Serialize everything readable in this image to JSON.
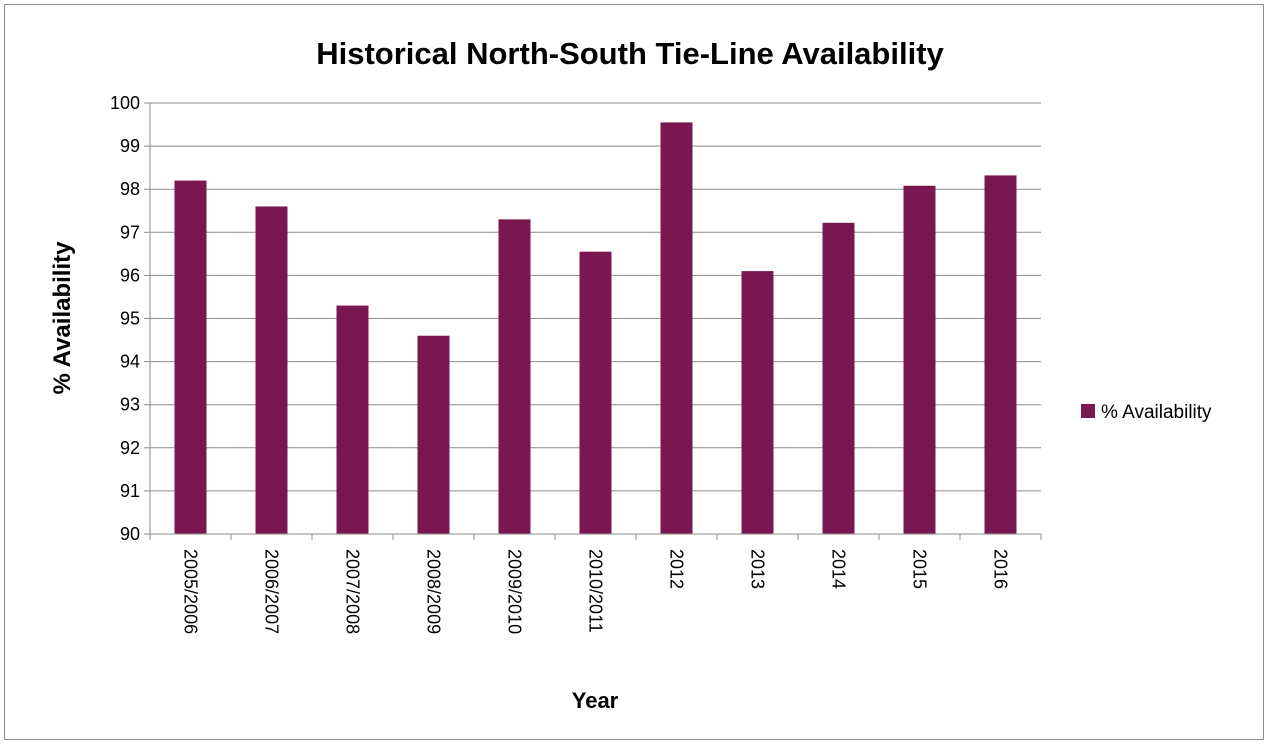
{
  "chart_data": {
    "type": "bar",
    "title": "Historical North-South Tie-Line Availability",
    "xlabel": "Year",
    "ylabel": "% Availability",
    "categories": [
      "2005/2006",
      "2006/2007",
      "2007/2008",
      "2008/2009",
      "2009/2010",
      "2010/2011",
      "2012",
      "2013",
      "2014",
      "2015",
      "2016"
    ],
    "series": [
      {
        "name": "% Availability",
        "values": [
          98.2,
          97.6,
          95.3,
          94.6,
          97.3,
          96.55,
          99.55,
          96.1,
          97.22,
          98.08,
          98.32
        ]
      }
    ],
    "ylim": [
      90,
      100
    ],
    "yticks": [
      "90",
      "91",
      "92",
      "93",
      "94",
      "95",
      "96",
      "97",
      "98",
      "99",
      "100"
    ],
    "grid": true,
    "legend_position": "right",
    "bar_color": "#7b1750"
  }
}
